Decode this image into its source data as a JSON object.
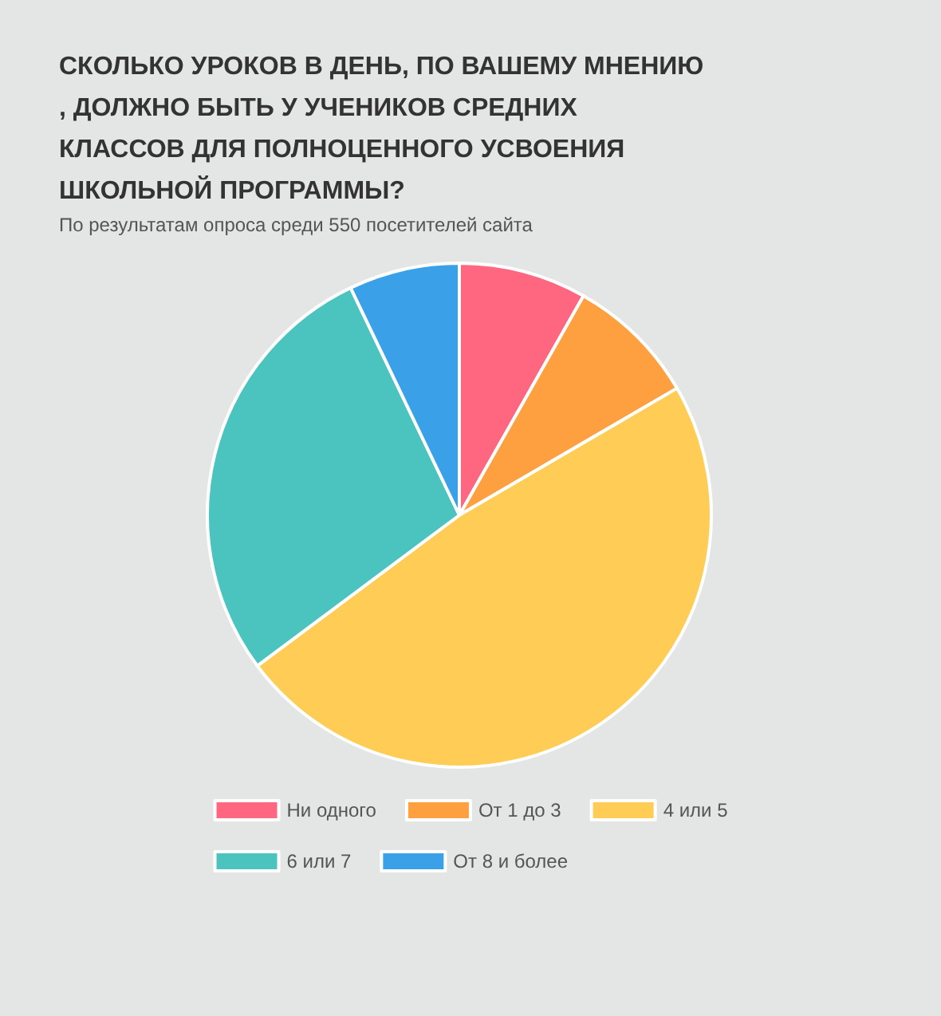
{
  "chart_data": {
    "type": "pie",
    "title": "СКОЛЬКО УРОКОВ В ДЕНЬ, ПО ВАШЕМУ МНЕНИЮ, ДОЛЖНО БЫТЬ У УЧЕНИКОВ СРЕДНИХ КЛАССОВ ДЛЯ ПОЛНОЦЕННОГО УСВОЕНИЯ ШКОЛЬНОЙ ПРОГРАММЫ?",
    "subtitle": "По результатам опроса среди 550 посетителей сайта",
    "categories": [
      "Ни одного",
      "От 1 до 3",
      "4 или 5",
      "6 или 7",
      "От 8 и более"
    ],
    "values": [
      8.2,
      8.4,
      48.2,
      28.1,
      7.1
    ],
    "colors": [
      "#ff6680",
      "#ffa040",
      "#ffcc55",
      "#4bc4c0",
      "#3aa0e8"
    ],
    "legend": "bottom"
  }
}
